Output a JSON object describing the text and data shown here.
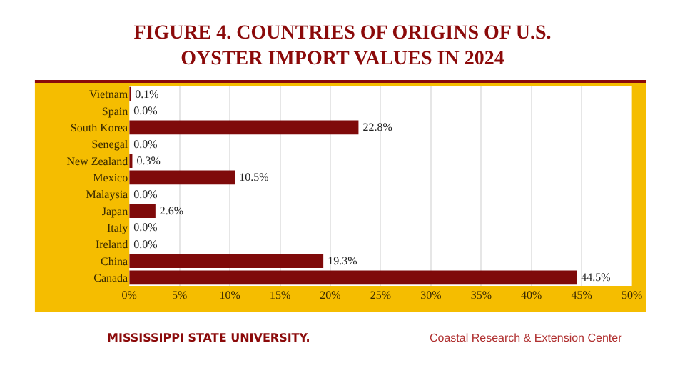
{
  "chart_data": {
    "type": "bar",
    "orientation": "horizontal",
    "title": "FIGURE 4. COUNTRIES OF ORIGINS OF U.S. OYSTER IMPORT VALUES IN 2024",
    "categories": [
      "Vietnam",
      "Spain",
      "South Korea",
      "Senegal",
      "New Zealand",
      "Mexico",
      "Malaysia",
      "Japan",
      "Italy",
      "Ireland",
      "China",
      "Canada"
    ],
    "values": [
      0.1,
      0.0,
      22.8,
      0.0,
      0.3,
      10.5,
      0.0,
      2.6,
      0.0,
      0.0,
      19.3,
      44.5
    ],
    "value_labels": [
      "0.1%",
      "0.0%",
      "22.8%",
      "0.0%",
      "0.3%",
      "10.5%",
      "0.0%",
      "2.6%",
      "0.0%",
      "0.0%",
      "19.3%",
      "44.5%"
    ],
    "color": "#7f0a0a",
    "xlim": [
      0,
      50
    ],
    "xticks": [
      {
        "value": 0,
        "label": "0%"
      },
      {
        "value": 5,
        "label": "5%"
      },
      {
        "value": 10,
        "label": "10%"
      },
      {
        "value": 15,
        "label": "15%"
      },
      {
        "value": 20,
        "label": "20%"
      },
      {
        "value": 25,
        "label": "25%"
      },
      {
        "value": 30,
        "label": "30%"
      },
      {
        "value": 35,
        "label": "35%"
      },
      {
        "value": 40,
        "label": "40%"
      },
      {
        "value": 45,
        "label": "45%"
      },
      {
        "value": 50,
        "label": "50%"
      }
    ],
    "grid": "x",
    "annotations": [
      "MISSISSIPPI STATE UNIVERSITY.",
      "Coastal Research & Extension Center"
    ]
  }
}
